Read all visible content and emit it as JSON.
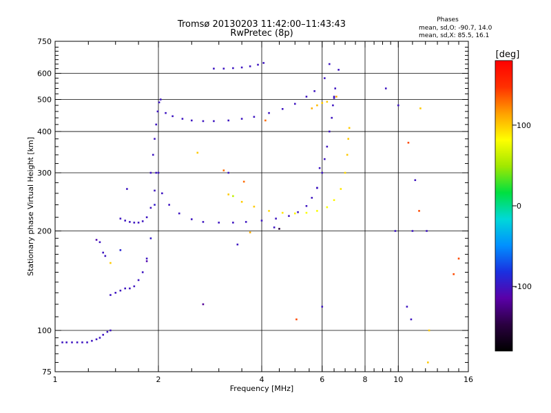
{
  "chart_data": {
    "type": "scatter",
    "title": "Tromsø 20130203 11:42:00–11:43:43",
    "subtitle": "RwPretec (8p)",
    "xlabel": "Frequency [MHz]",
    "ylabel": "Stationary phase Virtual Height [km]",
    "xscale": "log",
    "yscale": "log",
    "xlim": [
      1,
      16
    ],
    "ylim": [
      75,
      750
    ],
    "grid": true,
    "x_ticks": [
      1,
      2,
      4,
      6,
      8,
      10,
      16
    ],
    "x_minor_ticks": [
      1.25,
      1.5,
      1.75,
      2.5,
      3,
      3.5,
      4.5,
      5,
      5.5,
      6.5,
      7,
      7.5,
      8.5,
      9,
      9.5,
      11,
      12,
      13,
      14,
      15
    ],
    "x_gridlines": [
      2,
      4,
      6,
      8,
      10
    ],
    "y_ticks": [
      75,
      100,
      200,
      300,
      400,
      500,
      600,
      750
    ],
    "y_minor_ticks": [
      80,
      85,
      90,
      95,
      110,
      120,
      130,
      140,
      150,
      160,
      170,
      180,
      190,
      220,
      240,
      260,
      280,
      320,
      340,
      360,
      380,
      420,
      440,
      460,
      480,
      520,
      540,
      560,
      580,
      620,
      640,
      660,
      680,
      700,
      720
    ],
    "y_gridlines": [
      100,
      200,
      300,
      400,
      500,
      600
    ],
    "stats": {
      "title": "Phases",
      "line_o": "mean, sd,O: -90.7, 14.0",
      "line_x": "mean, sd,X:  85.5, 16.1"
    },
    "colorbar": {
      "label": "[deg]",
      "range": [
        -180,
        180
      ],
      "ticks": [
        100,
        0,
        -100
      ],
      "stops": [
        "#000000",
        "#2a0040",
        "#5a00a8",
        "#1a30e0",
        "#0090ff",
        "#00d8d8",
        "#00e040",
        "#a0e800",
        "#ffff00",
        "#ffa000",
        "#ff3000",
        "#ff0000"
      ]
    },
    "series": [
      {
        "x": [
          1.05,
          1.08,
          1.12,
          1.16,
          1.2,
          1.24,
          1.28,
          1.32,
          1.35,
          1.38,
          1.42,
          1.45
        ],
        "y": [
          92,
          92,
          92,
          92,
          92,
          92,
          93,
          94,
          95,
          97,
          99,
          100
        ],
        "phase": [
          -100,
          -100,
          -100,
          -100,
          -100,
          -100,
          -100,
          -100,
          -100,
          -100,
          -100,
          -100
        ]
      },
      {
        "x": [
          1.45,
          1.5,
          1.55,
          1.6,
          1.65,
          1.7,
          1.75,
          1.8,
          1.85,
          1.9,
          1.95,
          2.0
        ],
        "y": [
          128,
          130,
          132,
          134,
          134,
          136,
          142,
          150,
          165,
          190,
          240,
          300
        ],
        "phase": [
          -100,
          -100,
          -100,
          -100,
          -100,
          -100,
          -100,
          -100,
          -100,
          -95,
          -95,
          -100
        ]
      },
      {
        "x": [
          1.9,
          1.93,
          1.95,
          1.97,
          1.99,
          2.01,
          2.03
        ],
        "y": [
          300,
          340,
          380,
          420,
          460,
          490,
          500
        ],
        "phase": [
          -100,
          -100,
          -100,
          -100,
          -100,
          -100,
          -100
        ]
      },
      {
        "x": [
          1.55,
          1.6,
          1.65,
          1.7,
          1.75,
          1.8,
          1.85,
          1.9,
          1.95
        ],
        "y": [
          218,
          215,
          213,
          212,
          212,
          214,
          220,
          235,
          265
        ],
        "phase": [
          -100,
          -100,
          -100,
          -100,
          -100,
          -100,
          -100,
          -100,
          -100
        ]
      },
      {
        "x": [
          1.97,
          2.05,
          2.15,
          2.3,
          2.5,
          2.7,
          3.0,
          3.3,
          3.6,
          4.0,
          4.4,
          4.8,
          5.1,
          5.4,
          5.6,
          5.8
        ],
        "y": [
          300,
          260,
          240,
          226,
          217,
          213,
          212,
          212,
          213,
          215,
          218,
          222,
          228,
          238,
          252,
          270
        ],
        "phase": [
          -100,
          -100,
          -100,
          -100,
          -100,
          -100,
          -100,
          -100,
          -100,
          -100,
          -100,
          -100,
          -100,
          -100,
          -100,
          -100
        ]
      },
      {
        "x": [
          5.8,
          6.0,
          6.1,
          6.2,
          6.3,
          6.4,
          6.45,
          6.5,
          6.55
        ],
        "y": [
          270,
          300,
          330,
          360,
          400,
          440,
          480,
          510,
          540
        ],
        "phase": [
          -100,
          -100,
          -100,
          -100,
          -100,
          -100,
          -100,
          -100,
          -100
        ]
      },
      {
        "x": [
          2.1,
          2.2,
          2.35,
          2.5,
          2.7,
          2.9,
          3.2,
          3.5,
          3.8,
          4.2,
          4.6,
          5.0,
          5.4,
          5.7
        ],
        "y": [
          455,
          445,
          437,
          432,
          430,
          430,
          432,
          437,
          443,
          455,
          468,
          485,
          510,
          530
        ],
        "phase": [
          -100,
          -100,
          -100,
          -100,
          -100,
          -100,
          -100,
          -100,
          -100,
          -100,
          -100,
          -100,
          -100,
          -100
        ]
      },
      {
        "x": [
          2.9,
          3.1,
          3.3,
          3.5,
          3.7,
          3.9,
          4.05
        ],
        "y": [
          620,
          620,
          622,
          625,
          630,
          637,
          645
        ],
        "phase": [
          -100,
          -100,
          -100,
          -100,
          -100,
          -100,
          -100
        ]
      },
      {
        "x": [
          3.2,
          3.5,
          3.8,
          4.2,
          4.6,
          5.0,
          5.4,
          5.8,
          6.2,
          6.5,
          6.8,
          7.0,
          7.1,
          7.15,
          7.2
        ],
        "y": [
          258,
          245,
          237,
          230,
          227,
          226,
          227,
          230,
          236,
          248,
          268,
          300,
          340,
          380,
          410
        ],
        "phase": [
          100,
          100,
          100,
          95,
          90,
          85,
          80,
          80,
          80,
          85,
          90,
          95,
          100,
          100,
          100
        ]
      },
      {
        "x": [
          5.6,
          5.8,
          6.0,
          6.2
        ],
        "y": [
          470,
          480,
          488,
          492
        ],
        "phase": [
          110,
          105,
          100,
          100
        ]
      },
      {
        "x": [
          1.32,
          1.35,
          1.38,
          1.4,
          1.45,
          1.55,
          1.62,
          1.85,
          2.6,
          2.7,
          3.1,
          3.2,
          3.3,
          3.4,
          3.55,
          3.7,
          4.1,
          4.35,
          4.5,
          5.05,
          5.9,
          6.0,
          6.1,
          6.3,
          6.5,
          6.6,
          6.7,
          9.2,
          9.8,
          10.0,
          10.6,
          10.7,
          10.9,
          11.0,
          11.2,
          11.5,
          11.6,
          12.1,
          12.2,
          12.3,
          14.5,
          15.0
        ],
        "y": [
          188,
          185,
          172,
          168,
          160,
          175,
          268,
          162,
          345,
          120,
          305,
          300,
          255,
          182,
          282,
          198,
          432,
          205,
          203,
          108,
          310,
          118,
          580,
          640,
          505,
          510,
          615,
          540,
          200,
          480,
          118,
          370,
          108,
          200,
          285,
          230,
          470,
          200,
          80,
          100,
          148,
          165
        ],
        "phase": [
          -110,
          -100,
          -100,
          -100,
          100,
          -90,
          -100,
          -110,
          100,
          -120,
          130,
          -100,
          60,
          -100,
          130,
          110,
          130,
          -100,
          -150,
          140,
          -100,
          -100,
          -100,
          -100,
          -100,
          110,
          -100,
          -100,
          -100,
          -100,
          -100,
          140,
          -100,
          -100,
          -100,
          140,
          100,
          -100,
          100,
          100,
          140,
          140
        ]
      }
    ]
  }
}
